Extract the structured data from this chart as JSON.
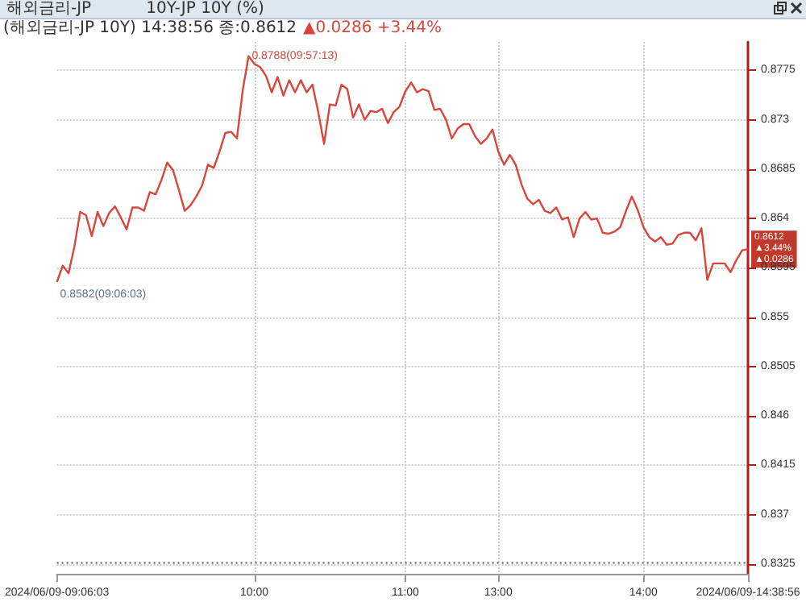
{
  "chart_data": {
    "type": "line",
    "title": "해외금리-JP",
    "subtitle": "10Y-JP 10Y (%)",
    "annotations": [
      "(해외금리-JP 10Y) 14:38:56 종:0.8612",
      "▲0.0286 +3.44%",
      "0.8788(09:57:13)",
      {
        "text": "0.8582(09:06:03)",
        "x": "2024/06/09-09:06:03",
        "y": 0.8582
      },
      {
        "text": "0.8612\n▲3.44%\n▲0.0286",
        "y": 0.8612
      }
    ],
    "categories": [
      "2024/06/09-09:06:03",
      null,
      null,
      null,
      null,
      null,
      null,
      null,
      null,
      null,
      null,
      null,
      null,
      null,
      null,
      null,
      null,
      null,
      null,
      null,
      null,
      null,
      null,
      null,
      null,
      null,
      null,
      null,
      null,
      null,
      null,
      null,
      null,
      null,
      "10:00",
      null,
      null,
      null,
      null,
      null,
      null,
      null,
      null,
      null,
      null,
      null,
      null,
      null,
      null,
      null,
      null,
      null,
      null,
      null,
      null,
      null,
      null,
      null,
      null,
      null,
      "11:00",
      null,
      null,
      null,
      null,
      null,
      null,
      null,
      null,
      null,
      null,
      null,
      null,
      null,
      null,
      null,
      "13:00",
      null,
      null,
      null,
      null,
      null,
      null,
      null,
      null,
      null,
      null,
      null,
      null,
      null,
      null,
      null,
      null,
      null,
      null,
      null,
      null,
      null,
      null,
      null,
      null,
      "14:00",
      null,
      null,
      null,
      null,
      null,
      null,
      null,
      null,
      null,
      null,
      null,
      null,
      null,
      null,
      null,
      null,
      null,
      "2024/06/09-14:38:56"
    ],
    "series": [
      {
        "color": "#d9463b",
        "values": [
          0.8582,
          0.8597,
          0.859,
          0.8614,
          0.8646,
          0.8643,
          0.8624,
          0.8646,
          0.8633,
          0.8645,
          0.8651,
          0.8641,
          0.863,
          0.865,
          0.865,
          0.8647,
          0.8664,
          0.8662,
          0.8675,
          0.8691,
          0.8684,
          0.8666,
          0.8647,
          0.8652,
          0.866,
          0.867,
          0.8689,
          0.8686,
          0.8701,
          0.8718,
          0.8719,
          0.8713,
          0.8757,
          0.8788,
          0.8781,
          0.8778,
          0.877,
          0.8755,
          0.8769,
          0.8752,
          0.8766,
          0.8755,
          0.8766,
          0.8755,
          0.8762,
          0.8737,
          0.8708,
          0.8744,
          0.8743,
          0.8762,
          0.8758,
          0.8732,
          0.8744,
          0.873,
          0.8738,
          0.8737,
          0.874,
          0.8727,
          0.8737,
          0.8742,
          0.8756,
          0.8764,
          0.8755,
          0.8758,
          0.8756,
          0.8739,
          0.874,
          0.873,
          0.8713,
          0.8722,
          0.8726,
          0.8726,
          0.8715,
          0.8708,
          0.8713,
          0.8721,
          0.8701,
          0.8689,
          0.8698,
          0.8689,
          0.8671,
          0.8658,
          0.8653,
          0.8657,
          0.8647,
          0.8645,
          0.865,
          0.8639,
          0.8641,
          0.8623,
          0.864,
          0.8646,
          0.8639,
          0.864,
          0.8627,
          0.8626,
          0.8628,
          0.8632,
          0.8647,
          0.866,
          0.8648,
          0.8632,
          0.8623,
          0.8619,
          0.8623,
          0.8616,
          0.8617,
          0.8625,
          0.8627,
          0.8627,
          0.862,
          0.8631,
          0.8584,
          0.8599,
          0.8599,
          0.8599,
          0.8591,
          0.8602,
          0.8611,
          0.8612
        ]
      }
    ],
    "ylim": [
      0.8316,
      0.8801
    ],
    "yticks": [
      0.8325,
      0.837,
      0.8415,
      0.846,
      0.8505,
      0.855,
      0.8595,
      0.864,
      0.8685,
      0.873,
      0.8775
    ],
    "ref_lines": [
      {
        "axis": "y",
        "value": 0.8326,
        "color": "#555555",
        "line_style": "dotted"
      }
    ],
    "grid": true,
    "marker": "none",
    "line_style": "solid"
  }
}
